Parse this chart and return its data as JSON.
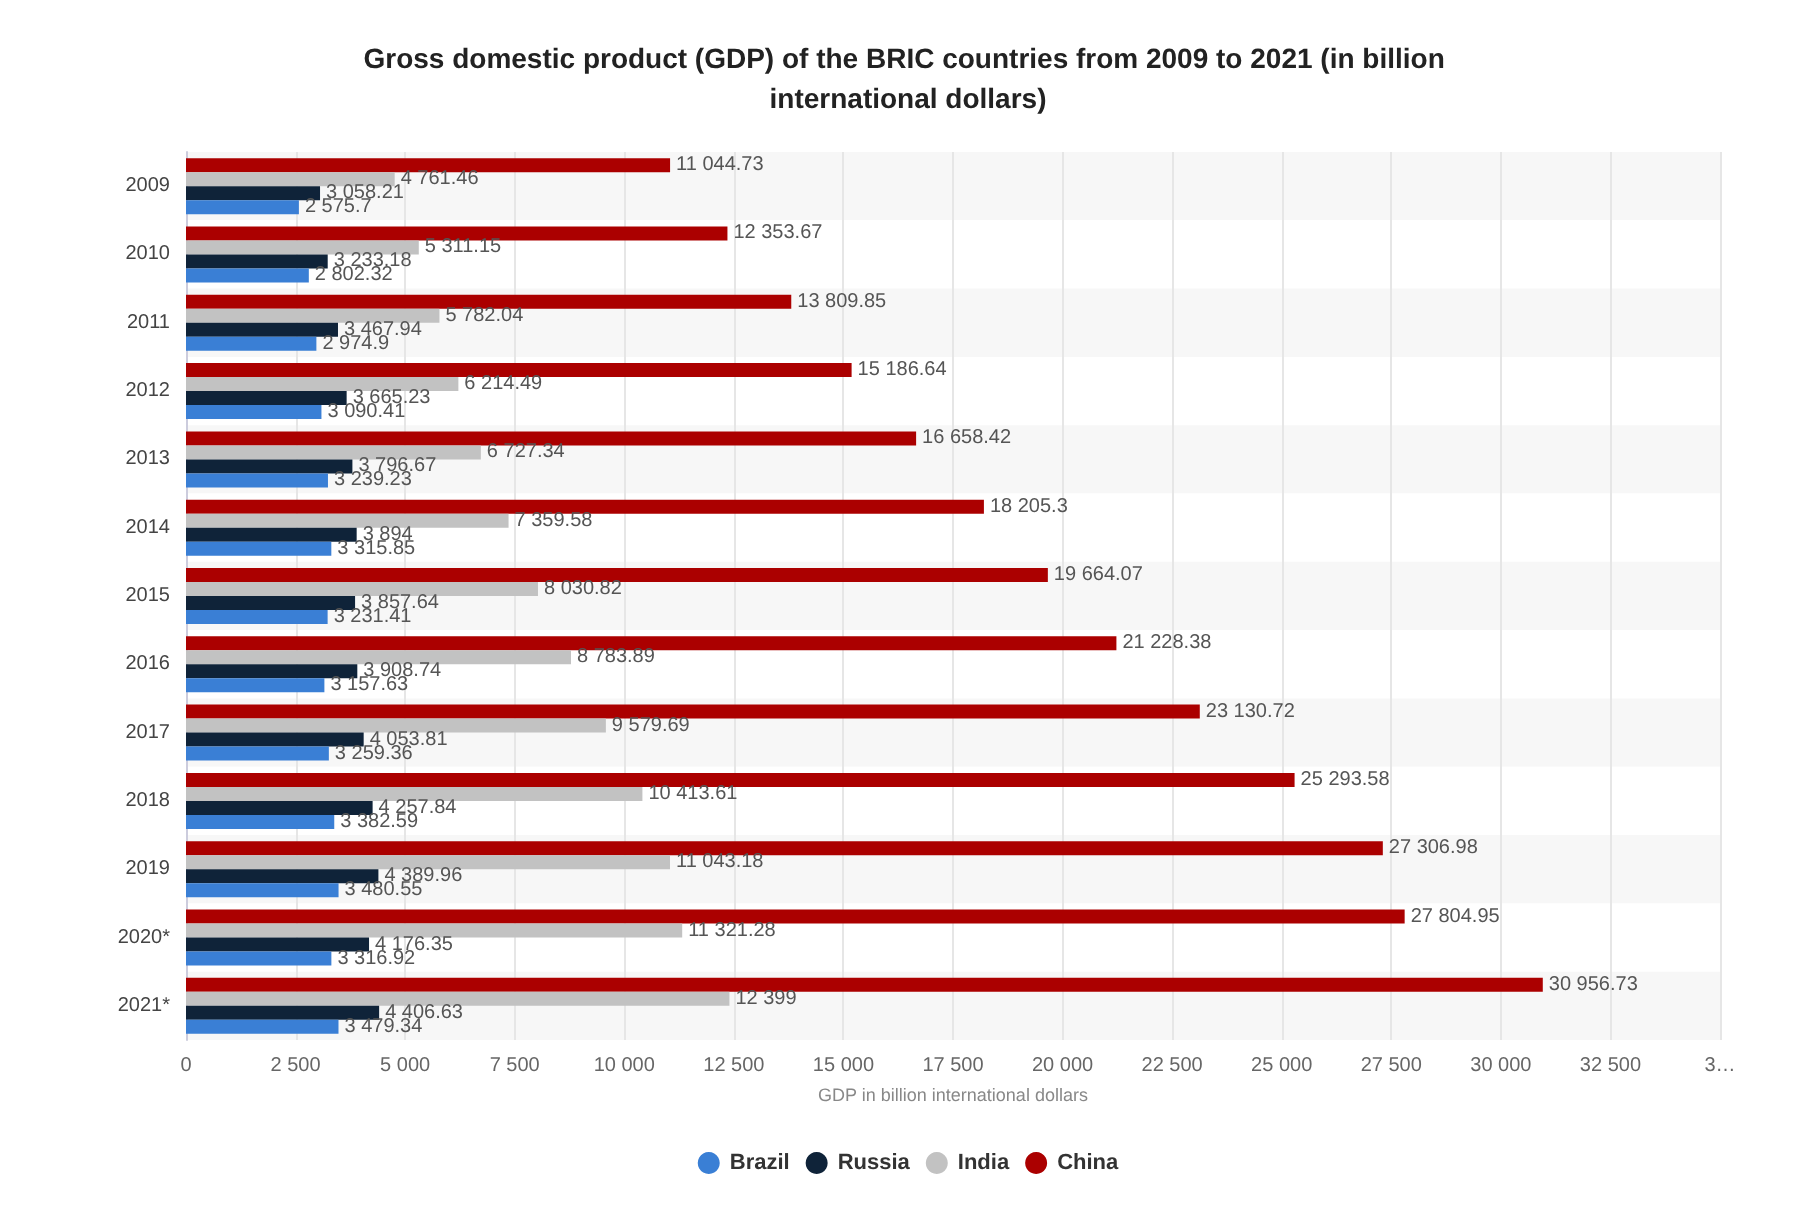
{
  "chart_data": {
    "type": "bar",
    "orientation": "horizontal",
    "title": "Gross domestic product (GDP) of the BRIC countries from 2009 to 2021 (in billion international dollars)",
    "xlabel": "GDP in billion international dollars",
    "categories": [
      "2009",
      "2010",
      "2011",
      "2012",
      "2013",
      "2014",
      "2015",
      "2016",
      "2017",
      "2018",
      "2019",
      "2020*",
      "2021*"
    ],
    "series": [
      {
        "name": "Brazil",
        "color": "#3a7fd5",
        "values": [
          2575.7,
          2802.32,
          2974.9,
          3090.41,
          3239.23,
          3315.85,
          3231.41,
          3157.63,
          3259.36,
          3382.59,
          3480.55,
          3316.92,
          3479.34
        ]
      },
      {
        "name": "Russia",
        "color": "#0f2339",
        "values": [
          3058.21,
          3233.18,
          3467.94,
          3665.23,
          3796.67,
          3894,
          3857.64,
          3908.74,
          4053.81,
          4257.84,
          4389.96,
          4176.35,
          4406.63
        ]
      },
      {
        "name": "India",
        "color": "#c2c2c2",
        "values": [
          4761.46,
          5311.15,
          5782.04,
          6214.49,
          6727.34,
          7359.58,
          8030.82,
          8783.89,
          9579.69,
          10413.61,
          11043.18,
          11321.28,
          12399
        ]
      },
      {
        "name": "China",
        "color": "#ab0000",
        "values": [
          11044.73,
          12353.67,
          13809.85,
          15186.64,
          16658.42,
          18205.3,
          19664.07,
          21228.38,
          23130.72,
          25293.58,
          27306.98,
          27804.95,
          30956.73
        ]
      }
    ],
    "xlim": [
      0,
      35000
    ],
    "xticks": [
      0,
      {
        "value": 2500,
        "label": "2 500"
      },
      {
        "value": 5000,
        "label": "5 000"
      },
      {
        "value": 7500,
        "label": "7 500"
      },
      {
        "value": 10000,
        "label": "10 000"
      },
      {
        "value": 12500,
        "label": "12 500"
      },
      {
        "value": 15000,
        "label": "15 000"
      },
      {
        "value": 17500,
        "label": "17 500"
      },
      {
        "value": 20000,
        "label": "20 000"
      },
      {
        "value": 22500,
        "label": "22 500"
      },
      {
        "value": 25000,
        "label": "25 000"
      },
      {
        "value": 27500,
        "label": "27 500"
      },
      {
        "value": 30000,
        "label": "30 000"
      },
      {
        "value": 32500,
        "label": "32 500"
      },
      {
        "value": 35000,
        "label": "3…"
      }
    ],
    "data_labels": true,
    "grid": "x",
    "legend": "bottom"
  }
}
